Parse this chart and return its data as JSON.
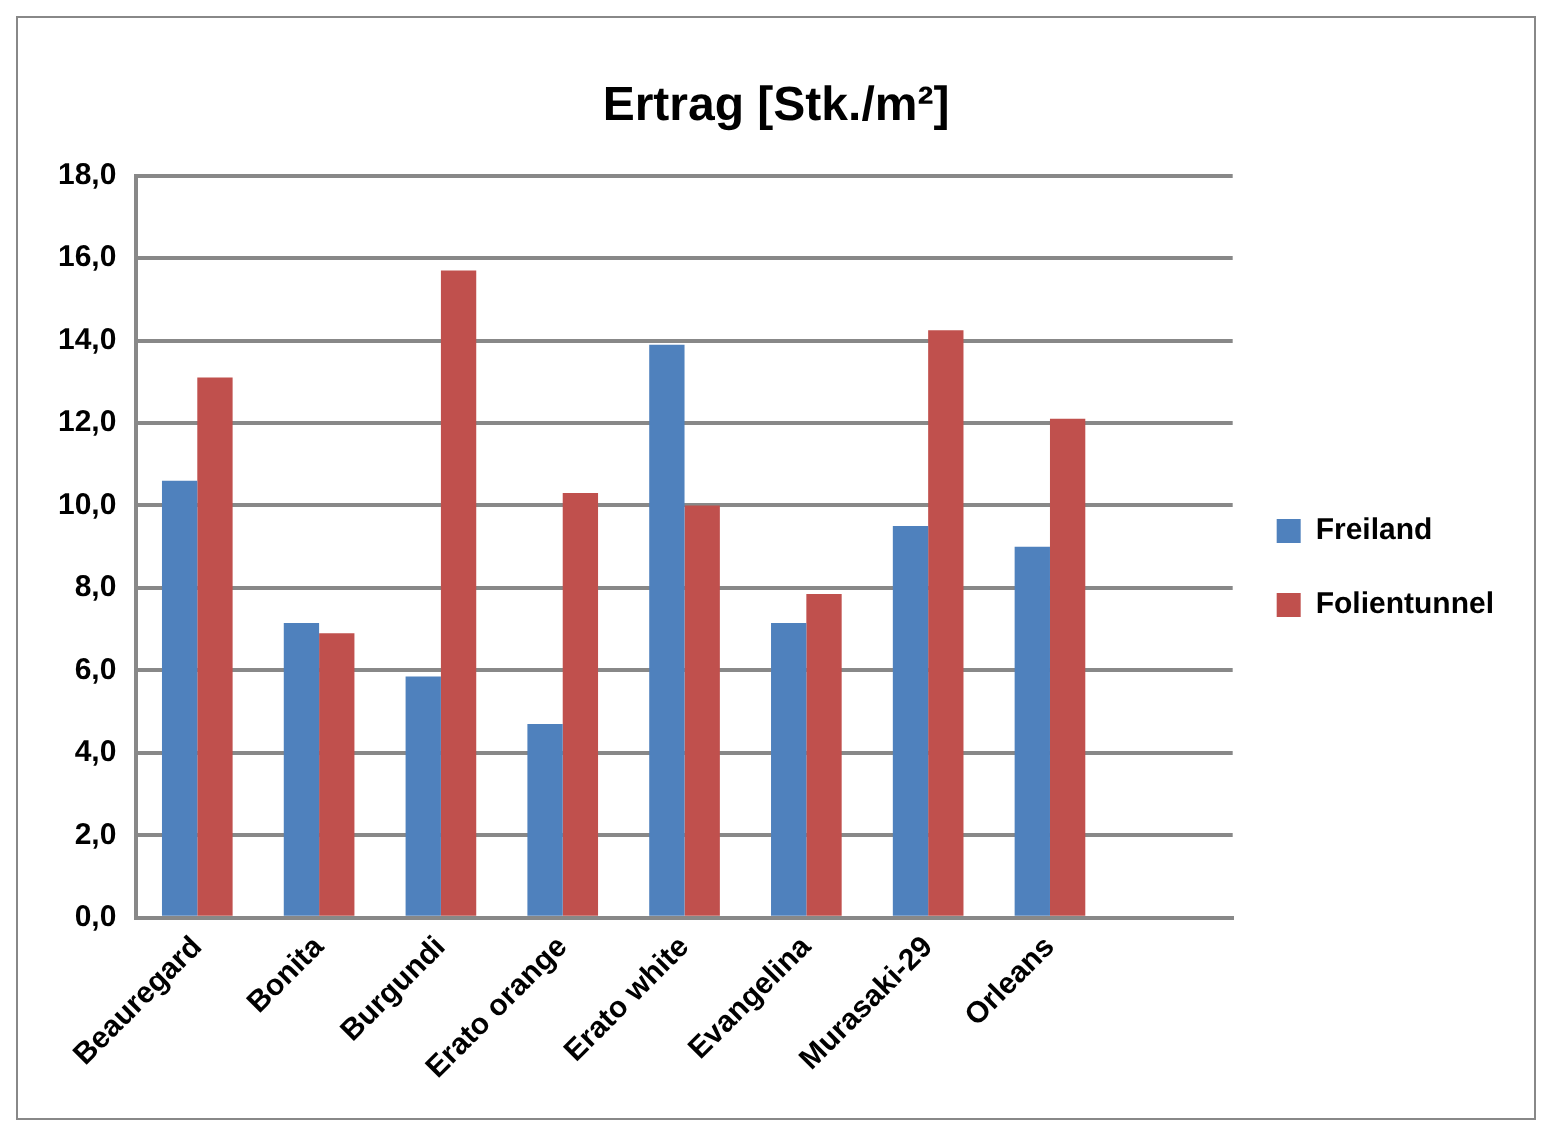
{
  "chart_data": {
    "type": "bar",
    "title": "Ertrag [Stk./m²]",
    "categories": [
      "Beauregard",
      "Bonita",
      "Burgundi",
      "Erato orange",
      "Erato white",
      "Evangelina",
      "Murasaki-29",
      "Orleans",
      null
    ],
    "series": [
      {
        "name": "Freiland",
        "color": "#4f81bd",
        "values": [
          10.6,
          7.15,
          5.85,
          4.7,
          13.9,
          7.15,
          9.5,
          9.0,
          null
        ]
      },
      {
        "name": "Folientunnel",
        "color": "#c0504d",
        "values": [
          13.1,
          6.9,
          15.7,
          10.3,
          10.0,
          7.85,
          14.25,
          12.1,
          null
        ]
      }
    ],
    "ylim": [
      0,
      18
    ],
    "yticks": [
      {
        "value": 0,
        "label": "0,0"
      },
      {
        "value": 2,
        "label": "2,0"
      },
      {
        "value": 4,
        "label": "4,0"
      },
      {
        "value": 6,
        "label": "6,0"
      },
      {
        "value": 8,
        "label": "8,0"
      },
      {
        "value": 10,
        "label": "10,0"
      },
      {
        "value": 12,
        "label": "12,0"
      },
      {
        "value": 14,
        "label": "14,0"
      },
      {
        "value": 16,
        "label": "16,0"
      },
      {
        "value": 18,
        "label": "18,0"
      }
    ],
    "grid": "y",
    "legend": "right"
  }
}
